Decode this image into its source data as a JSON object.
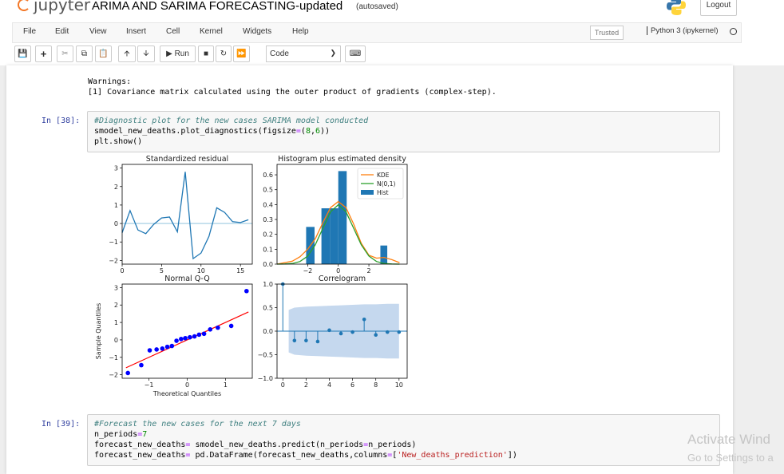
{
  "header": {
    "logo_text": "jupyter",
    "notebook_title": "ARIMA AND SARIMA FORECASTING-updated",
    "autosave_status": "(autosaved)",
    "logout_label": "Logout"
  },
  "menubar": {
    "items": [
      "File",
      "Edit",
      "View",
      "Insert",
      "Cell",
      "Kernel",
      "Widgets",
      "Help"
    ],
    "trusted_label": "Trusted",
    "kernel_label": "Python 3 (ipykernel)"
  },
  "toolbar": {
    "run_label": "Run",
    "cell_type": "Code"
  },
  "cells": {
    "output_prev": {
      "line1": "Warnings:",
      "line2": "[1] Covariance matrix calculated using the outer product of gradients (complex-step)."
    },
    "cell38": {
      "prompt": "In [38]:",
      "line1": "#Diagnostic plot for the new cases SARIMA model conducted",
      "line2a": "smodel_new_deaths.plot_diagnostics(figsize",
      "line2b": "=",
      "line2c": "(",
      "line2d": "8",
      "line2e": ",",
      "line2f": "6",
      "line2g": "))",
      "line3": "plt.show()"
    },
    "cell39": {
      "prompt": "In [39]:",
      "line1": "#Forecast the new cases for the next 7 days",
      "line2a": "n_periods",
      "line2b": "=",
      "line2c": "7",
      "line3a": "forecast_new_deaths",
      "line3b": "=",
      "line3c": " smodel_new_deaths.predict(n_periods",
      "line3d": "=",
      "line3e": "n_periods)",
      "line4a": "forecast_new_deaths",
      "line4b": "=",
      "line4c": " pd.DataFrame(forecast_new_deaths,columns",
      "line4d": "=",
      "line4e": "[",
      "line4f": "'New_deaths_prediction'",
      "line4g": "])"
    }
  },
  "watermark": {
    "line1": "Activate Wind",
    "line2": "Go to Settings to a"
  },
  "colors": {
    "blue": "#1f77b4",
    "orange": "#ff7f0e",
    "green": "#2ca02c",
    "qq_points": "#0000ff",
    "qq_line": "#ff0000",
    "ci_band": "#c5d8ee",
    "prompt": "#303f9f",
    "comment": "#408080"
  },
  "chart_data": [
    {
      "type": "line",
      "title": "Standardized residual",
      "x": [
        0,
        1,
        2,
        3,
        4,
        5,
        6,
        7,
        8,
        9,
        10,
        11,
        12,
        13,
        14,
        15,
        16
      ],
      "y": [
        -0.5,
        0.7,
        -0.35,
        -0.55,
        -0.05,
        0.3,
        0.35,
        -0.45,
        2.8,
        -1.9,
        -1.6,
        -0.7,
        0.85,
        0.6,
        0.1,
        0.05,
        0.2
      ],
      "xlim": [
        0,
        16.5
      ],
      "ylim": [
        -2.2,
        3.2
      ],
      "xticks": [
        0,
        5,
        10,
        15
      ],
      "yticks": [
        -2,
        -1,
        0,
        1,
        2,
        3
      ],
      "hline": 0
    },
    {
      "type": "bar",
      "title": "Histogram plus estimated density",
      "bins": [
        {
          "x0": -2.1,
          "x1": -1.55,
          "h": 0.25
        },
        {
          "x0": -1.1,
          "x1": -0.55,
          "h": 0.375
        },
        {
          "x0": -0.55,
          "x1": 0.0,
          "h": 0.375
        },
        {
          "x0": 0.0,
          "x1": 0.55,
          "h": 0.625
        },
        {
          "x0": 2.75,
          "x1": 3.2,
          "h": 0.125
        }
      ],
      "series": [
        {
          "name": "KDE",
          "x": [
            -4,
            -3,
            -2.5,
            -2,
            -1.5,
            -1,
            -0.5,
            0,
            0.5,
            1,
            1.5,
            2,
            2.5,
            3,
            3.5,
            4
          ],
          "y": [
            0.0,
            0.02,
            0.05,
            0.1,
            0.17,
            0.28,
            0.38,
            0.42,
            0.38,
            0.27,
            0.14,
            0.06,
            0.04,
            0.045,
            0.03,
            0.01
          ]
        },
        {
          "name": "N(0,1)",
          "x": [
            -4,
            -3.5,
            -3,
            -2.5,
            -2,
            -1.5,
            -1,
            -0.5,
            0,
            0.5,
            1,
            1.5,
            2,
            2.5,
            3,
            3.5,
            4
          ],
          "y": [
            0.0001,
            0.0009,
            0.0044,
            0.0175,
            0.054,
            0.1295,
            0.242,
            0.352,
            0.399,
            0.352,
            0.242,
            0.1295,
            0.054,
            0.0175,
            0.0044,
            0.0009,
            0.0001
          ]
        },
        {
          "name": "Hist"
        }
      ],
      "xlim": [
        -4,
        4.5
      ],
      "ylim": [
        0,
        0.67
      ],
      "xticks": [
        -2,
        0,
        2
      ],
      "yticks": [
        0.0,
        0.1,
        0.2,
        0.3,
        0.4,
        0.5,
        0.6
      ],
      "legend": "top-right"
    },
    {
      "type": "scatter",
      "title": "Normal Q-Q",
      "xlabel": "Theoretical Quantiles",
      "ylabel": "Sample Quantiles",
      "x": [
        -1.55,
        -1.2,
        -0.98,
        -0.8,
        -0.65,
        -0.52,
        -0.4,
        -0.28,
        -0.16,
        -0.05,
        0.07,
        0.19,
        0.31,
        0.44,
        0.6,
        0.8,
        1.15,
        1.55
      ],
      "y": [
        -1.9,
        -1.45,
        -0.6,
        -0.55,
        -0.5,
        -0.4,
        -0.35,
        -0.05,
        0.05,
        0.1,
        0.15,
        0.2,
        0.3,
        0.35,
        0.6,
        0.7,
        0.8,
        2.8
      ],
      "fit_line": {
        "x0": -1.6,
        "y0": -1.6,
        "x1": 1.6,
        "y1": 1.6
      },
      "xlim": [
        -1.7,
        1.7
      ],
      "ylim": [
        -2.2,
        3.2
      ],
      "xticks": [
        -1,
        0,
        1
      ],
      "yticks": [
        -2,
        -1,
        0,
        1,
        2,
        3
      ]
    },
    {
      "type": "bar",
      "title": "Correlogram",
      "x": [
        0,
        1,
        2,
        3,
        4,
        5,
        6,
        7,
        8,
        9,
        10
      ],
      "y": [
        1.0,
        -0.2,
        -0.2,
        -0.22,
        0.02,
        -0.05,
        -0.02,
        0.25,
        -0.08,
        -0.02,
        -0.02
      ],
      "ci_upper": [
        0.45,
        0.5,
        0.52,
        0.53,
        0.54,
        0.55,
        0.56,
        0.57,
        0.57,
        0.58,
        0.58
      ],
      "xlim": [
        -0.5,
        10.7
      ],
      "ylim": [
        -1.0,
        1.0
      ],
      "xticks": [
        0,
        2,
        4,
        6,
        8,
        10
      ],
      "yticks": [
        -1.0,
        -0.5,
        0.0,
        0.5,
        1.0
      ]
    }
  ]
}
